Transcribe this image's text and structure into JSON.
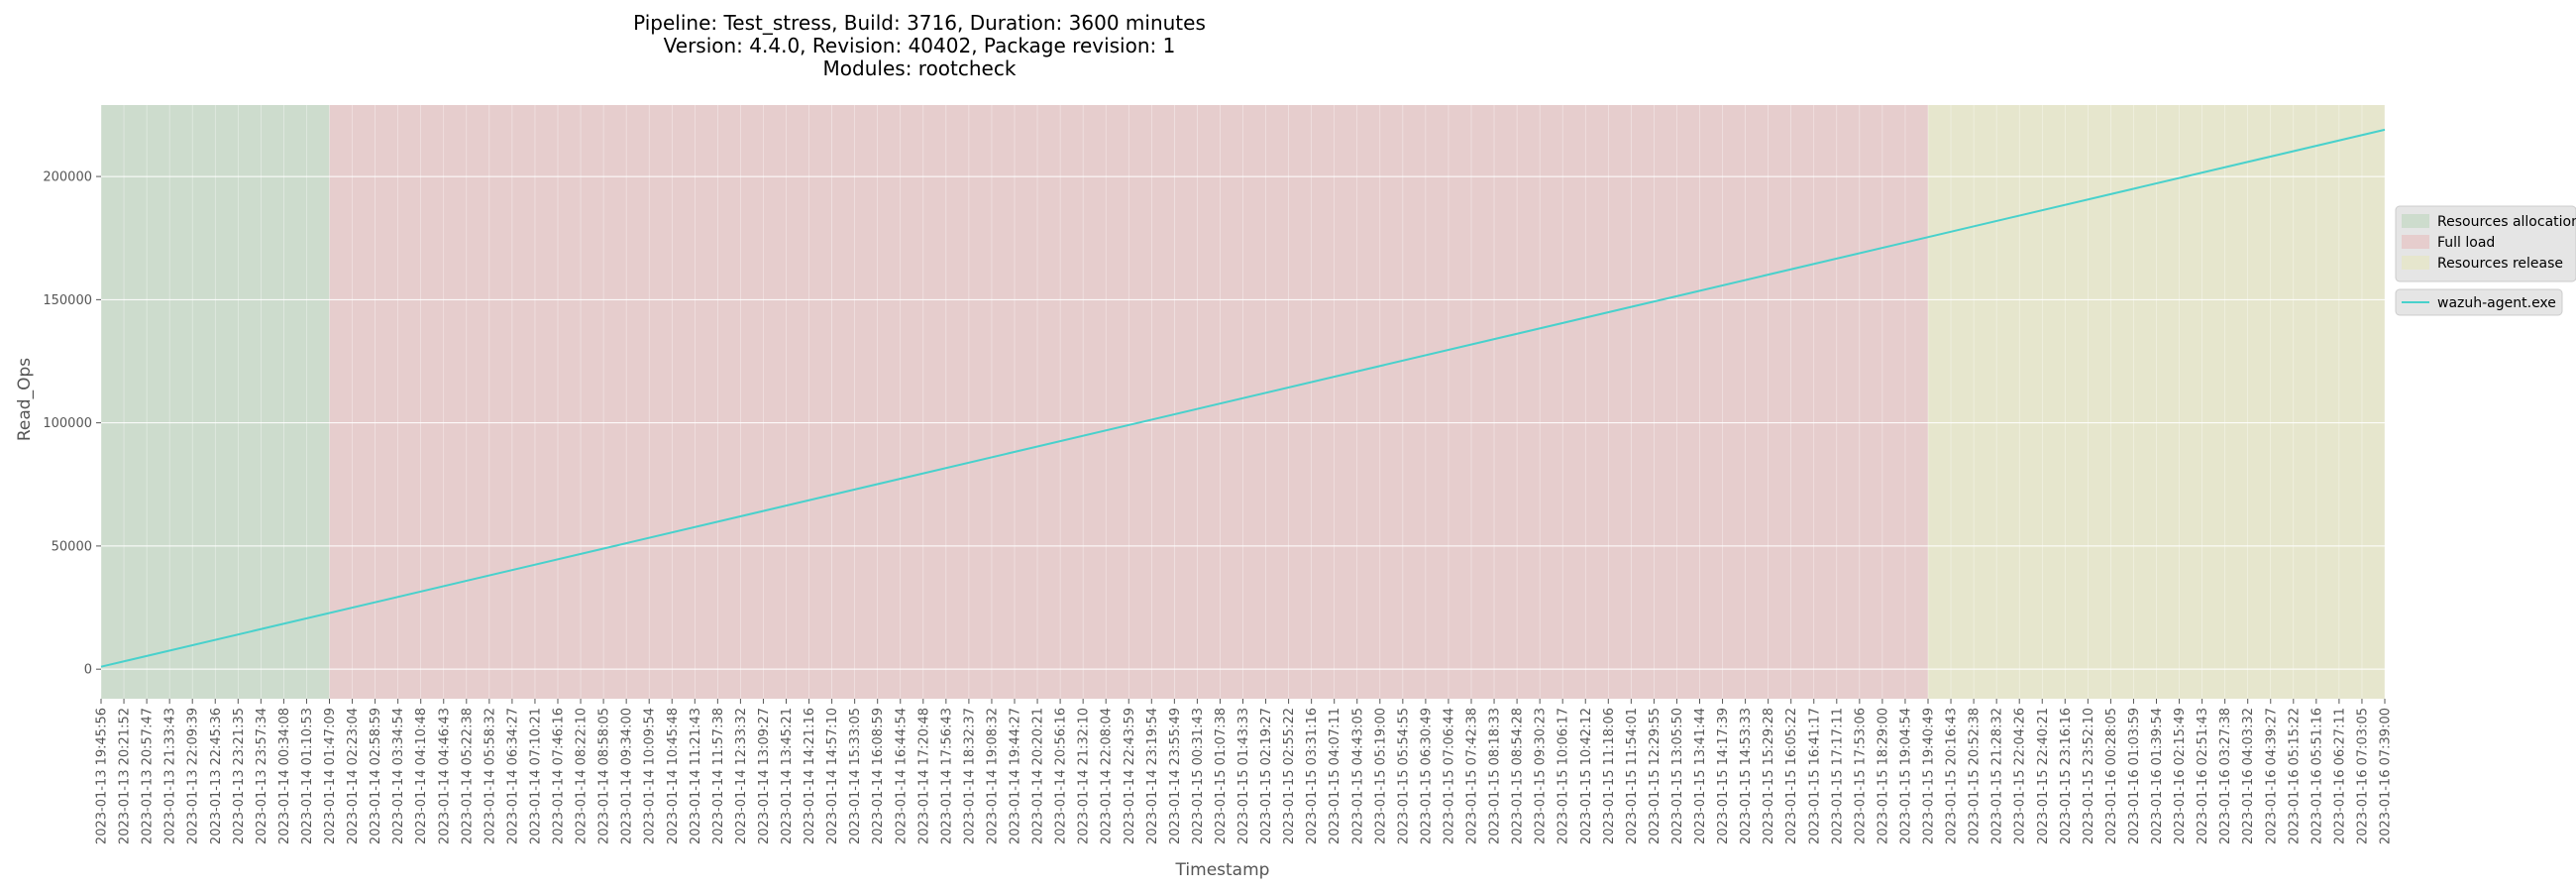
{
  "chart_data": {
    "type": "line",
    "title_lines": [
      "Pipeline: Test_stress, Build: 3716, Duration: 3600 minutes",
      "Version: 4.4.0, Revision: 40402, Package revision: 1",
      "Modules: rootcheck"
    ],
    "xlabel": "Timestamp",
    "ylabel": "Read_Ops",
    "ylim": [
      -12000,
      229000
    ],
    "yticks": [
      0,
      50000,
      100000,
      150000,
      200000
    ],
    "grid": true,
    "x_tick_labels": [
      "2023-01-13 19:45:56",
      "2023-01-13 20:21:52",
      "2023-01-13 20:57:47",
      "2023-01-13 21:33:43",
      "2023-01-13 22:09:39",
      "2023-01-13 22:45:36",
      "2023-01-13 23:21:35",
      "2023-01-13 23:57:34",
      "2023-01-14 00:34:08",
      "2023-01-14 01:10:53",
      "2023-01-14 01:47:09",
      "2023-01-14 02:23:04",
      "2023-01-14 02:58:59",
      "2023-01-14 03:34:54",
      "2023-01-14 04:10:48",
      "2023-01-14 04:46:43",
      "2023-01-14 05:22:38",
      "2023-01-14 05:58:32",
      "2023-01-14 06:34:27",
      "2023-01-14 07:10:21",
      "2023-01-14 07:46:16",
      "2023-01-14 08:22:10",
      "2023-01-14 08:58:05",
      "2023-01-14 09:34:00",
      "2023-01-14 10:09:54",
      "2023-01-14 10:45:48",
      "2023-01-14 11:21:43",
      "2023-01-14 11:57:38",
      "2023-01-14 12:33:32",
      "2023-01-14 13:09:27",
      "2023-01-14 13:45:21",
      "2023-01-14 14:21:16",
      "2023-01-14 14:57:10",
      "2023-01-14 15:33:05",
      "2023-01-14 16:08:59",
      "2023-01-14 16:44:54",
      "2023-01-14 17:20:48",
      "2023-01-14 17:56:43",
      "2023-01-14 18:32:37",
      "2023-01-14 19:08:32",
      "2023-01-14 19:44:27",
      "2023-01-14 20:20:21",
      "2023-01-14 20:56:16",
      "2023-01-14 21:32:10",
      "2023-01-14 22:08:04",
      "2023-01-14 22:43:59",
      "2023-01-14 23:19:54",
      "2023-01-14 23:55:49",
      "2023-01-15 00:31:43",
      "2023-01-15 01:07:38",
      "2023-01-15 01:43:33",
      "2023-01-15 02:19:27",
      "2023-01-15 02:55:22",
      "2023-01-15 03:31:16",
      "2023-01-15 04:07:11",
      "2023-01-15 04:43:05",
      "2023-01-15 05:19:00",
      "2023-01-15 05:54:55",
      "2023-01-15 06:30:49",
      "2023-01-15 07:06:44",
      "2023-01-15 07:42:38",
      "2023-01-15 08:18:33",
      "2023-01-15 08:54:28",
      "2023-01-15 09:30:23",
      "2023-01-15 10:06:17",
      "2023-01-15 10:42:12",
      "2023-01-15 11:18:06",
      "2023-01-15 11:54:01",
      "2023-01-15 12:29:55",
      "2023-01-15 13:05:50",
      "2023-01-15 13:41:44",
      "2023-01-15 14:17:39",
      "2023-01-15 14:53:33",
      "2023-01-15 15:29:28",
      "2023-01-15 16:05:22",
      "2023-01-15 16:41:17",
      "2023-01-15 17:17:11",
      "2023-01-15 17:53:06",
      "2023-01-15 18:29:00",
      "2023-01-15 19:04:54",
      "2023-01-15 19:40:49",
      "2023-01-15 20:16:43",
      "2023-01-15 20:52:38",
      "2023-01-15 21:28:32",
      "2023-01-15 22:04:26",
      "2023-01-15 22:40:21",
      "2023-01-15 23:16:16",
      "2023-01-15 23:52:10",
      "2023-01-16 00:28:05",
      "2023-01-16 01:03:59",
      "2023-01-16 01:39:54",
      "2023-01-16 02:15:49",
      "2023-01-16 02:51:43",
      "2023-01-16 03:27:38",
      "2023-01-16 04:03:32",
      "2023-01-16 04:39:27",
      "2023-01-16 05:15:22",
      "2023-01-16 05:51:16",
      "2023-01-16 06:27:11",
      "2023-01-16 07:03:05",
      "2023-01-16 07:39:00"
    ],
    "phases": [
      {
        "name": "Resources allocation",
        "start_index": 0,
        "end_index": 10,
        "color": "#cddccd"
      },
      {
        "name": "Full load",
        "start_index": 10,
        "end_index": 80,
        "color": "#e6cdcd"
      },
      {
        "name": "Resources release",
        "start_index": 80,
        "end_index": 100,
        "color": "#e6e6cd"
      }
    ],
    "series": [
      {
        "name": "wazuh-agent.exe",
        "color": "#48d1cc",
        "x_index": [
          0,
          100
        ],
        "values": [
          1000,
          219000
        ]
      }
    ],
    "legend": {
      "placement": "right",
      "phase_entries": [
        "Resources allocation",
        "Full load",
        "Resources release"
      ],
      "series_entries": [
        "wazuh-agent.exe"
      ]
    }
  }
}
